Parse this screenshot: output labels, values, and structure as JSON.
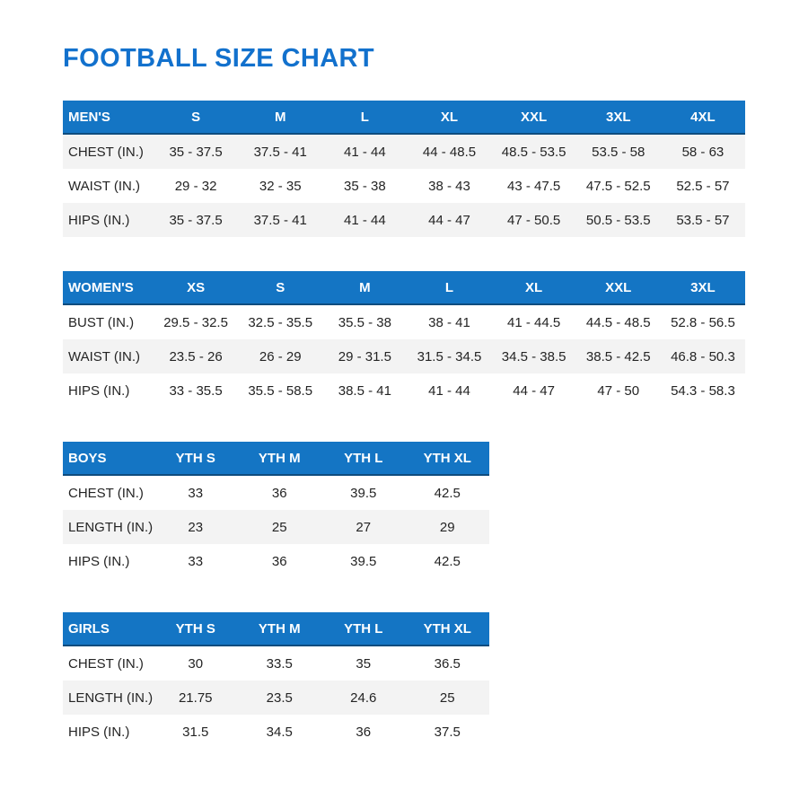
{
  "page": {
    "title": "FOOTBALL SIZE CHART"
  },
  "colors": {
    "title": "#1271cd",
    "header_bg": "#1475c4",
    "header_text": "#ffffff",
    "header_edge": "#0e4c7e",
    "row_alt": "#f3f3f3",
    "text": "#242424"
  },
  "tables": [
    {
      "id": "mens",
      "wide": true,
      "header": [
        "MEN'S",
        "S",
        "M",
        "L",
        "XL",
        "XXL",
        "3XL",
        "4XL"
      ],
      "rows": [
        [
          "CHEST (IN.)",
          "35 - 37.5",
          "37.5 - 41",
          "41 - 44",
          "44 - 48.5",
          "48.5 - 53.5",
          "53.5 - 58",
          "58 - 63"
        ],
        [
          "WAIST (IN.)",
          "29 - 32",
          "32 - 35",
          "35 - 38",
          "38 - 43",
          "43 - 47.5",
          "47.5 - 52.5",
          "52.5 - 57"
        ],
        [
          "HIPS (IN.)",
          "35 - 37.5",
          "37.5 - 41",
          "41 - 44",
          "44 - 47",
          "47 - 50.5",
          "50.5 - 53.5",
          "53.5 - 57"
        ]
      ],
      "shaded_rows": [
        0,
        2
      ]
    },
    {
      "id": "womens",
      "wide": true,
      "header": [
        "WOMEN'S",
        "XS",
        "S",
        "M",
        "L",
        "XL",
        "XXL",
        "3XL"
      ],
      "rows": [
        [
          "BUST (IN.)",
          "29.5 - 32.5",
          "32.5 - 35.5",
          "35.5 - 38",
          "38 - 41",
          "41 - 44.5",
          "44.5 - 48.5",
          "52.8 - 56.5"
        ],
        [
          "WAIST (IN.)",
          "23.5 - 26",
          "26 - 29",
          "29 - 31.5",
          "31.5 - 34.5",
          "34.5 - 38.5",
          "38.5 - 42.5",
          "46.8 - 50.3"
        ],
        [
          "HIPS (IN.)",
          "33 - 35.5",
          "35.5 - 58.5",
          "38.5 - 41",
          "41 - 44",
          "44 - 47",
          "47 - 50",
          "54.3 - 58.3"
        ]
      ],
      "shaded_rows": [
        1
      ]
    },
    {
      "id": "boys",
      "wide": false,
      "header": [
        "BOYS",
        "YTH S",
        "YTH M",
        "YTH L",
        "YTH XL"
      ],
      "rows": [
        [
          "CHEST (IN.)",
          "33",
          "36",
          "39.5",
          "42.5"
        ],
        [
          "LENGTH (IN.)",
          "23",
          "25",
          "27",
          "29"
        ],
        [
          "HIPS (IN.)",
          "33",
          "36",
          "39.5",
          "42.5"
        ]
      ],
      "shaded_rows": [
        1
      ]
    },
    {
      "id": "girls",
      "wide": false,
      "header": [
        "GIRLS",
        "YTH S",
        "YTH M",
        "YTH L",
        "YTH XL"
      ],
      "rows": [
        [
          "CHEST (IN.)",
          "30",
          "33.5",
          "35",
          "36.5"
        ],
        [
          "LENGTH (IN.)",
          "21.75",
          "23.5",
          "24.6",
          "25"
        ],
        [
          "HIPS (IN.)",
          "31.5",
          "34.5",
          "36",
          "37.5"
        ]
      ],
      "shaded_rows": [
        1
      ]
    }
  ]
}
